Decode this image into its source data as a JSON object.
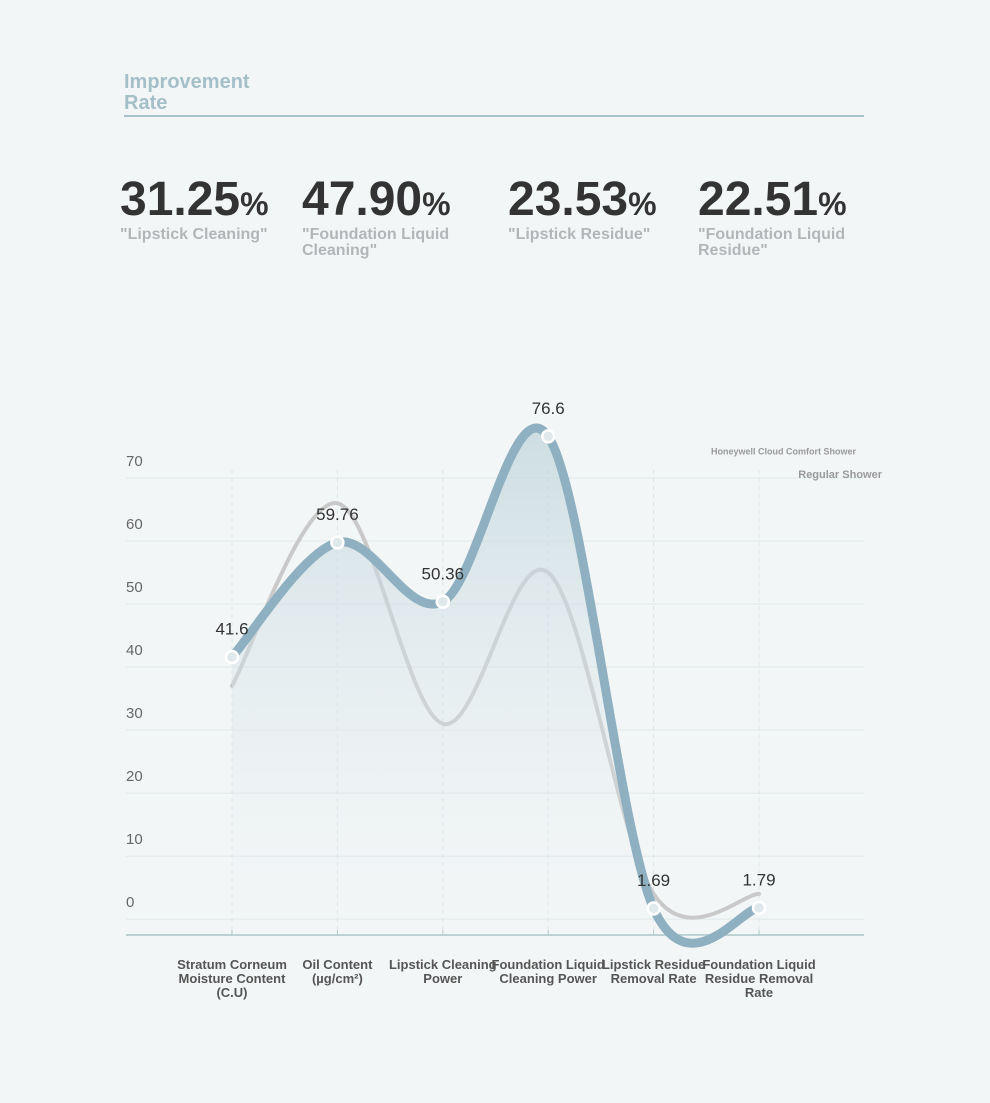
{
  "header": {
    "title": "Improvement Rate"
  },
  "stats": [
    {
      "value": "31.25",
      "unit": "%",
      "label": "\"Lipstick Cleaning\""
    },
    {
      "value": "47.90",
      "unit": "%",
      "label": "\"Foundation Liquid Cleaning\""
    },
    {
      "value": "23.53",
      "unit": "%",
      "label": "\"Lipstick Residue\""
    },
    {
      "value": "22.51",
      "unit": "%",
      "label": "\"Foundation Liquid Residue\""
    }
  ],
  "chart_data": {
    "type": "line",
    "categories": [
      "Stratum Corneum Moisture Content (C.U)",
      "Oil Content (µg/cm²)",
      "Lipstick Cleaning Power",
      "Foundation Liquid Cleaning Power",
      "Lipstick Residue Removal Rate",
      "Foundation Liquid Residue Removal Rate"
    ],
    "series": [
      {
        "name": "Honeywell Cloud Comfort Shower",
        "color": "#8fb0c0",
        "values": [
          41.6,
          59.76,
          50.36,
          76.6,
          1.69,
          1.79
        ]
      },
      {
        "name": "Regular Shower",
        "color": "#c9c9c9",
        "values": [
          37,
          66,
          31,
          55,
          4,
          4
        ]
      }
    ],
    "ylim": [
      -3,
      80
    ],
    "yticks": [
      0,
      10,
      20,
      30,
      40,
      50,
      60,
      70
    ],
    "grid": true,
    "legend": "top-right"
  }
}
